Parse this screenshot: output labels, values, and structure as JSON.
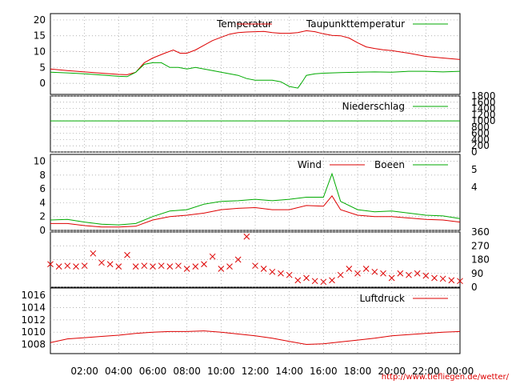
{
  "credit": "http://www.tiefliegen.de/wetter/",
  "x_ticks": [
    "02:00",
    "04:00",
    "06:00",
    "08:00",
    "10:00",
    "12:00",
    "14:00",
    "16:00",
    "18:00",
    "20:00",
    "22:00",
    "00:00"
  ],
  "colors": {
    "red": "#dd0000",
    "green": "#00aa00",
    "grid": "#999999"
  },
  "chart_data": [
    {
      "type": "line",
      "ylim": [
        -3.5,
        22
      ],
      "yticks": [
        "0",
        "5",
        "10",
        "15",
        "20"
      ],
      "series": [
        {
          "name": "Temperatur",
          "color": "#dd0000",
          "points": [
            [
              0,
              4.5
            ],
            [
              1,
              4
            ],
            [
              2,
              3.6
            ],
            [
              3,
              3.2
            ],
            [
              4,
              2.8
            ],
            [
              4.5,
              2.7
            ],
            [
              5,
              3.5
            ],
            [
              5.5,
              6.5
            ],
            [
              6,
              8
            ],
            [
              6.7,
              9.5
            ],
            [
              7.2,
              10.5
            ],
            [
              7.6,
              9.5
            ],
            [
              8,
              9.5
            ],
            [
              8.5,
              10.5
            ],
            [
              9,
              12
            ],
            [
              9.5,
              13.5
            ],
            [
              10,
              14.5
            ],
            [
              10.5,
              15.5
            ],
            [
              11,
              16
            ],
            [
              11.5,
              16.2
            ],
            [
              12,
              16.3
            ],
            [
              12.5,
              16.4
            ],
            [
              13,
              16
            ],
            [
              13.5,
              15.8
            ],
            [
              14,
              15.8
            ],
            [
              14.5,
              16
            ],
            [
              15,
              16.6
            ],
            [
              15.5,
              16.3
            ],
            [
              16,
              15.6
            ],
            [
              16.5,
              15.1
            ],
            [
              17,
              15
            ],
            [
              17.5,
              14.3
            ],
            [
              18,
              12.8
            ],
            [
              18.5,
              11.5
            ],
            [
              19,
              11
            ],
            [
              19.5,
              10.6
            ],
            [
              20,
              10.3
            ],
            [
              21,
              9.5
            ],
            [
              22,
              8.5
            ],
            [
              23,
              8
            ],
            [
              24,
              7.5
            ]
          ]
        },
        {
          "name": "Taupunkttemperatur",
          "color": "#00aa00",
          "points": [
            [
              0,
              3.5
            ],
            [
              1,
              3.3
            ],
            [
              2,
              3
            ],
            [
              3,
              2.6
            ],
            [
              4,
              2.2
            ],
            [
              4.5,
              2.1
            ],
            [
              5,
              3.5
            ],
            [
              5.5,
              6
            ],
            [
              6,
              6.5
            ],
            [
              6.5,
              6.5
            ],
            [
              7,
              5
            ],
            [
              7.5,
              5
            ],
            [
              8,
              4.5
            ],
            [
              8.5,
              5
            ],
            [
              9,
              4.5
            ],
            [
              9.5,
              4
            ],
            [
              10,
              3.5
            ],
            [
              10.5,
              3
            ],
            [
              11,
              2.5
            ],
            [
              11.5,
              1.5
            ],
            [
              12,
              1
            ],
            [
              12.5,
              1
            ],
            [
              13,
              1
            ],
            [
              13.5,
              0.5
            ],
            [
              14,
              -1
            ],
            [
              14.5,
              -1.5
            ],
            [
              14.7,
              0
            ],
            [
              15,
              2.5
            ],
            [
              15.5,
              3
            ],
            [
              16,
              3.2
            ],
            [
              17,
              3.4
            ],
            [
              18,
              3.5
            ],
            [
              19,
              3.6
            ],
            [
              20,
              3.5
            ],
            [
              21,
              3.8
            ],
            [
              22,
              3.8
            ],
            [
              23,
              3.6
            ],
            [
              24,
              3.8
            ]
          ]
        }
      ]
    },
    {
      "type": "line",
      "ylim": [
        0,
        1800
      ],
      "yticks": [
        "0",
        "200",
        "400",
        "600",
        "800",
        "1000",
        "1200",
        "1400",
        "1600",
        "1800"
      ],
      "series": [
        {
          "name": "Niederschlag",
          "color": "#00aa00",
          "points": [
            [
              0,
              1000
            ],
            [
              24,
              1000
            ]
          ]
        }
      ]
    },
    {
      "type": "line",
      "ylim": [
        0,
        11
      ],
      "yticks": [
        "0",
        "2",
        "4",
        "6",
        "8",
        "10"
      ],
      "right_ticks": [
        "4",
        "5"
      ],
      "series": [
        {
          "name": "Wind",
          "color": "#dd0000",
          "points": [
            [
              0,
              1
            ],
            [
              1,
              1
            ],
            [
              2,
              0.7
            ],
            [
              3,
              0.5
            ],
            [
              4,
              0.5
            ],
            [
              5,
              0.6
            ],
            [
              6,
              1.5
            ],
            [
              7,
              2
            ],
            [
              8,
              2.2
            ],
            [
              9,
              2.5
            ],
            [
              10,
              3
            ],
            [
              11,
              3.2
            ],
            [
              12,
              3.3
            ],
            [
              13,
              3
            ],
            [
              14,
              3
            ],
            [
              15,
              3.6
            ],
            [
              16,
              3.5
            ],
            [
              16.5,
              5
            ],
            [
              17,
              3
            ],
            [
              18,
              2.2
            ],
            [
              19,
              2
            ],
            [
              20,
              2
            ],
            [
              21,
              1.8
            ],
            [
              22,
              1.6
            ],
            [
              23,
              1.5
            ],
            [
              24,
              1.2
            ]
          ]
        },
        {
          "name": "Boeen",
          "color": "#00aa00",
          "points": [
            [
              0,
              1.5
            ],
            [
              1,
              1.6
            ],
            [
              2,
              1.2
            ],
            [
              3,
              0.9
            ],
            [
              4,
              0.8
            ],
            [
              5,
              1
            ],
            [
              6,
              2
            ],
            [
              7,
              2.8
            ],
            [
              8,
              3
            ],
            [
              9,
              3.8
            ],
            [
              10,
              4.2
            ],
            [
              11,
              4.3
            ],
            [
              12,
              4.5
            ],
            [
              13,
              4.3
            ],
            [
              14,
              4.5
            ],
            [
              15,
              4.8
            ],
            [
              16,
              4.8
            ],
            [
              16.5,
              8.2
            ],
            [
              17,
              4.2
            ],
            [
              18,
              3
            ],
            [
              19,
              2.7
            ],
            [
              20,
              2.8
            ],
            [
              21,
              2.5
            ],
            [
              22,
              2.2
            ],
            [
              23,
              2.1
            ],
            [
              24,
              1.7
            ]
          ]
        }
      ]
    },
    {
      "type": "scatter",
      "ylim": [
        0,
        360
      ],
      "yticks": [
        "0",
        "90",
        "180",
        "270",
        "360"
      ],
      "series": [
        {
          "name": "",
          "color": "#dd0000",
          "points": [
            [
              0,
              150
            ],
            [
              0.5,
              135
            ],
            [
              1,
              140
            ],
            [
              1.5,
              135
            ],
            [
              2,
              140
            ],
            [
              2.5,
              220
            ],
            [
              3,
              160
            ],
            [
              3.5,
              150
            ],
            [
              4,
              135
            ],
            [
              4.5,
              210
            ],
            [
              5,
              135
            ],
            [
              5.5,
              140
            ],
            [
              6,
              135
            ],
            [
              6.5,
              140
            ],
            [
              7,
              135
            ],
            [
              7.5,
              140
            ],
            [
              8,
              120
            ],
            [
              8.5,
              135
            ],
            [
              9,
              150
            ],
            [
              9.5,
              200
            ],
            [
              10,
              120
            ],
            [
              10.5,
              135
            ],
            [
              11,
              180
            ],
            [
              11.5,
              330
            ],
            [
              12,
              140
            ],
            [
              12.5,
              120
            ],
            [
              13,
              100
            ],
            [
              13.5,
              90
            ],
            [
              14,
              80
            ],
            [
              14.5,
              45
            ],
            [
              15,
              60
            ],
            [
              15.5,
              40
            ],
            [
              16,
              35
            ],
            [
              16.5,
              45
            ],
            [
              17,
              80
            ],
            [
              17.5,
              120
            ],
            [
              18,
              90
            ],
            [
              18.5,
              120
            ],
            [
              19,
              100
            ],
            [
              19.5,
              90
            ],
            [
              20,
              60
            ],
            [
              20.5,
              90
            ],
            [
              21,
              80
            ],
            [
              21.5,
              90
            ],
            [
              22,
              75
            ],
            [
              22.5,
              60
            ],
            [
              23,
              55
            ],
            [
              23.5,
              45
            ],
            [
              24,
              40
            ]
          ]
        }
      ]
    },
    {
      "type": "line",
      "ylim": [
        1006.5,
        1017.2
      ],
      "yticks": [
        "1008",
        "1010",
        "1012",
        "1014",
        "1016"
      ],
      "series": [
        {
          "name": "Luftdruck",
          "color": "#dd0000",
          "points": [
            [
              0,
              1008.3
            ],
            [
              1,
              1008.9
            ],
            [
              2,
              1009.1
            ],
            [
              3,
              1009.3
            ],
            [
              4,
              1009.5
            ],
            [
              5,
              1009.8
            ],
            [
              6,
              1010
            ],
            [
              7,
              1010.1
            ],
            [
              8,
              1010.1
            ],
            [
              9,
              1010.2
            ],
            [
              10,
              1010
            ],
            [
              11,
              1009.7
            ],
            [
              12,
              1009.4
            ],
            [
              13,
              1009
            ],
            [
              14,
              1008.5
            ],
            [
              15,
              1008
            ],
            [
              16,
              1008.1
            ],
            [
              17,
              1008.4
            ],
            [
              18,
              1008.7
            ],
            [
              19,
              1009
            ],
            [
              20,
              1009.4
            ],
            [
              21,
              1009.6
            ],
            [
              22,
              1009.8
            ],
            [
              23,
              1010
            ],
            [
              24,
              1010.1
            ]
          ]
        }
      ]
    }
  ]
}
